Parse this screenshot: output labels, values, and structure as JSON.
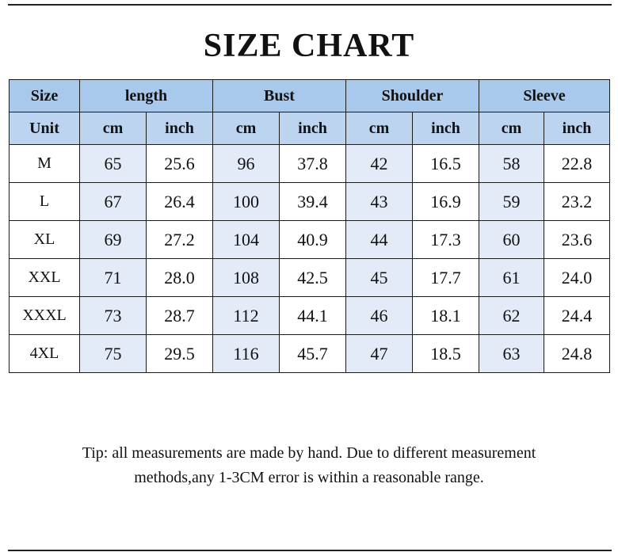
{
  "title": "SIZE CHART",
  "header": {
    "size": "Size",
    "groups": [
      "length",
      "Bust",
      "Shoulder",
      "Sleeve"
    ]
  },
  "units": {
    "label": "Unit",
    "cm": "cm",
    "inch": "inch"
  },
  "rows": [
    {
      "size": "M",
      "length_cm": "65",
      "length_inch": "25.6",
      "bust_cm": "96",
      "bust_inch": "37.8",
      "shoulder_cm": "42",
      "shoulder_inch": "16.5",
      "sleeve_cm": "58",
      "sleeve_inch": "22.8"
    },
    {
      "size": "L",
      "length_cm": "67",
      "length_inch": "26.4",
      "bust_cm": "100",
      "bust_inch": "39.4",
      "shoulder_cm": "43",
      "shoulder_inch": "16.9",
      "sleeve_cm": "59",
      "sleeve_inch": "23.2"
    },
    {
      "size": "XL",
      "length_cm": "69",
      "length_inch": "27.2",
      "bust_cm": "104",
      "bust_inch": "40.9",
      "shoulder_cm": "44",
      "shoulder_inch": "17.3",
      "sleeve_cm": "60",
      "sleeve_inch": "23.6"
    },
    {
      "size": "XXL",
      "length_cm": "71",
      "length_inch": "28.0",
      "bust_cm": "108",
      "bust_inch": "42.5",
      "shoulder_cm": "45",
      "shoulder_inch": "17.7",
      "sleeve_cm": "61",
      "sleeve_inch": "24.0"
    },
    {
      "size": "XXXL",
      "length_cm": "73",
      "length_inch": "28.7",
      "bust_cm": "112",
      "bust_inch": "44.1",
      "shoulder_cm": "46",
      "shoulder_inch": "18.1",
      "sleeve_cm": "62",
      "sleeve_inch": "24.4"
    },
    {
      "size": "4XL",
      "length_cm": "75",
      "length_inch": "29.5",
      "bust_cm": "116",
      "bust_inch": "45.7",
      "shoulder_cm": "47",
      "shoulder_inch": "18.5",
      "sleeve_cm": "63",
      "sleeve_inch": "24.8"
    }
  ],
  "tip": {
    "line1": "Tip: all measurements are made by hand. Due to different measurement",
    "line2": "methods,any 1-3CM error is within a reasonable range."
  },
  "colors": {
    "header_bg": "#a9c9ec",
    "unit_bg": "#bcd4f0",
    "cm_column_bg": "#e2ebf7"
  }
}
